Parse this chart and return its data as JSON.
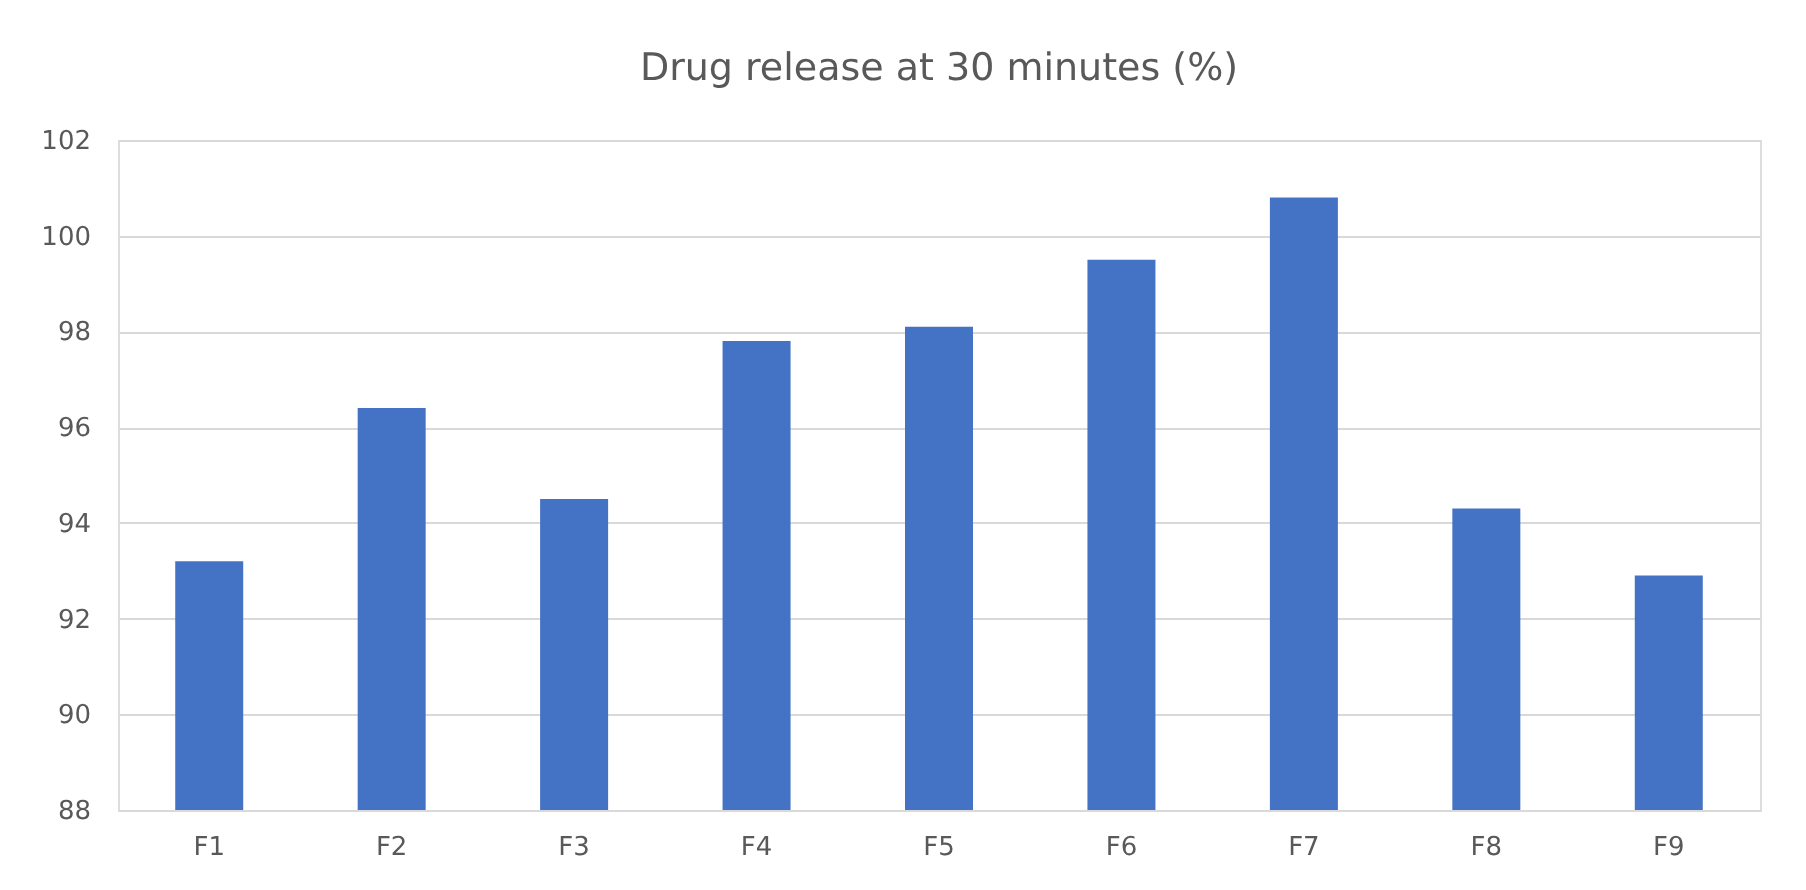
{
  "chart_data": {
    "type": "bar",
    "title": "Drug release at 30 minutes (%)",
    "categories": [
      "F1",
      "F2",
      "F3",
      "F4",
      "F5",
      "F6",
      "F7",
      "F8",
      "F9"
    ],
    "values": [
      93.2,
      96.4,
      94.5,
      97.8,
      98.1,
      99.5,
      100.8,
      94.3,
      92.9
    ],
    "color": "#4472c4",
    "ylim": [
      88,
      102
    ],
    "yticks": [
      88,
      90,
      92,
      94,
      96,
      98,
      100,
      102
    ],
    "grid": "y"
  }
}
